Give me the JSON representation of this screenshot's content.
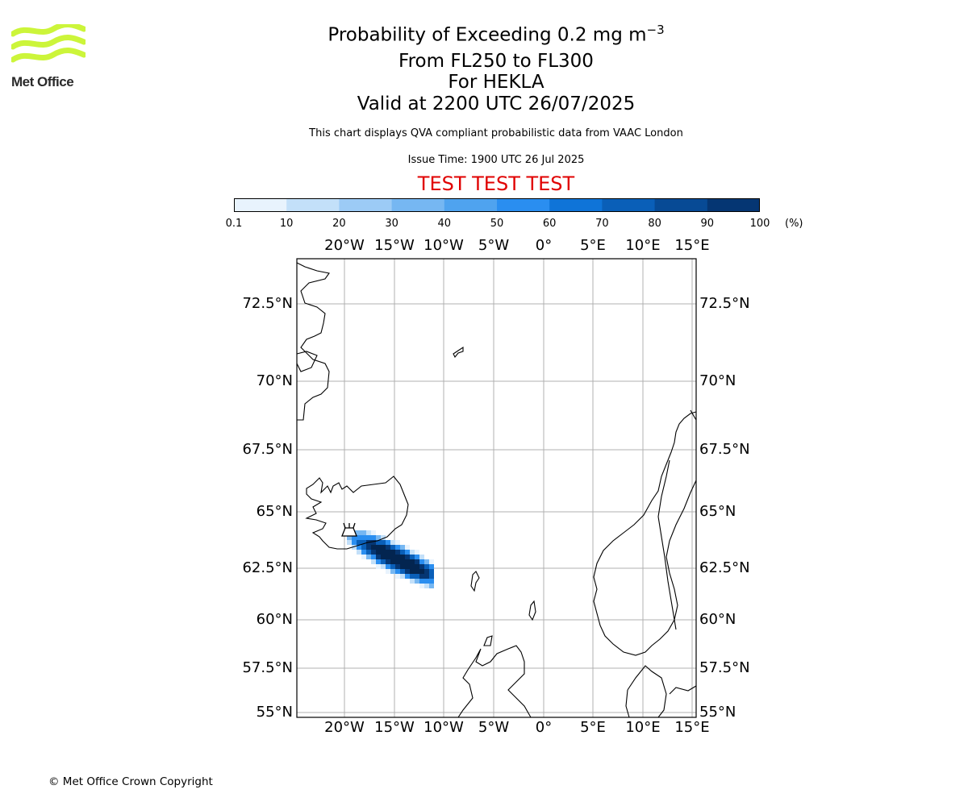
{
  "logo": {
    "text": "Met Office",
    "color": "#ccf53a"
  },
  "header": {
    "title_main": "Probability of Exceeding 0.2 mg m",
    "title_sup": "−3",
    "line2": "From FL250 to FL300",
    "line3": "For HEKLA",
    "line4": "Valid at 2200 UTC 26/07/2025",
    "subtitle": "This chart displays QVA compliant probabilistic data from VAAC London",
    "issue_time": "Issue Time: 1900 UTC 26 Jul 2025",
    "test_banner": "TEST TEST TEST"
  },
  "colorbar": {
    "ticks": [
      "0.1",
      "10",
      "20",
      "30",
      "40",
      "50",
      "60",
      "70",
      "80",
      "90",
      "100"
    ],
    "unit": "(%)",
    "colors": [
      "#e8f3fd",
      "#c3e0f9",
      "#9ccbf6",
      "#76b7f2",
      "#4fa3ef",
      "#2a8ef0",
      "#0f74d8",
      "#0a5fb8",
      "#074a95",
      "#053673",
      "#032550"
    ]
  },
  "map": {
    "lon_labels": [
      "20°W",
      "15°W",
      "10°W",
      "5°W",
      "0°",
      "5°E",
      "10°E",
      "15°E"
    ],
    "lat_labels": [
      "72.5°N",
      "70°N",
      "67.5°N",
      "65°N",
      "62.5°N",
      "60°N",
      "57.5°N",
      "55°N"
    ],
    "volcano": "HEKLA"
  },
  "footer": {
    "copyright": "© Met Office Crown Copyright"
  }
}
